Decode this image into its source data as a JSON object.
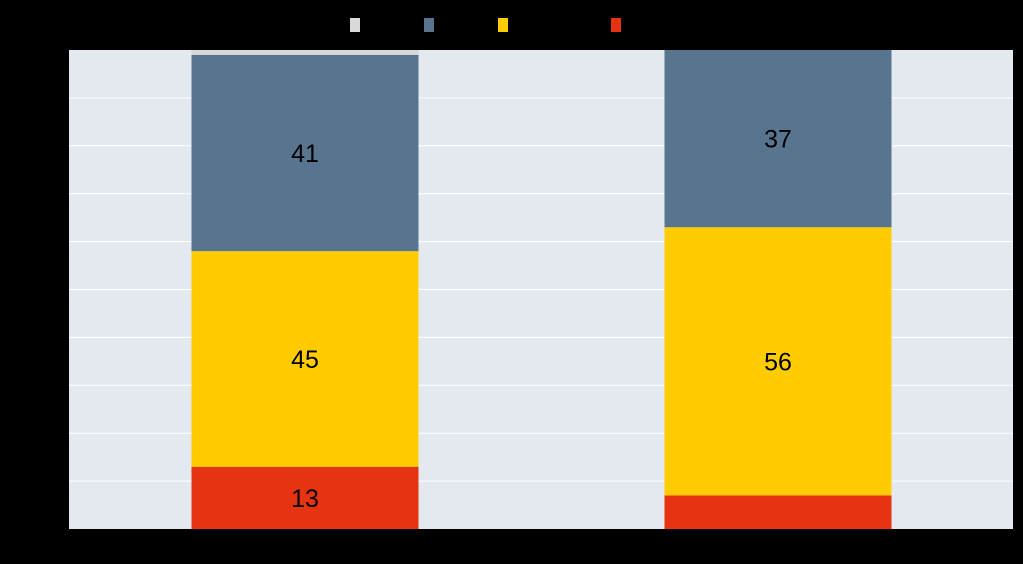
{
  "chart_data": {
    "type": "bar",
    "stacked": true,
    "orientation": "vertical",
    "categories": [
      "",
      ""
    ],
    "ylim": [
      0,
      100
    ],
    "grid": true,
    "legend_position": "top",
    "series": [
      {
        "color": "#E63312",
        "values": [
          13,
          7
        ],
        "labels": [
          "13",
          ""
        ]
      },
      {
        "color": "#FFCC00",
        "values": [
          45,
          56
        ],
        "labels": [
          "45",
          "56"
        ]
      },
      {
        "color": "#57758F",
        "values": [
          41,
          37
        ],
        "labels": [
          "41",
          "37"
        ]
      },
      {
        "color": "#D9D9D9",
        "values": [
          1,
          0
        ],
        "labels": [
          "",
          ""
        ]
      }
    ],
    "legend_order": [
      3,
      2,
      1,
      0
    ],
    "colors": {
      "page_background": "#000000",
      "plot_background": "#E4E8EF",
      "gridline": "#FFFFFF"
    }
  }
}
